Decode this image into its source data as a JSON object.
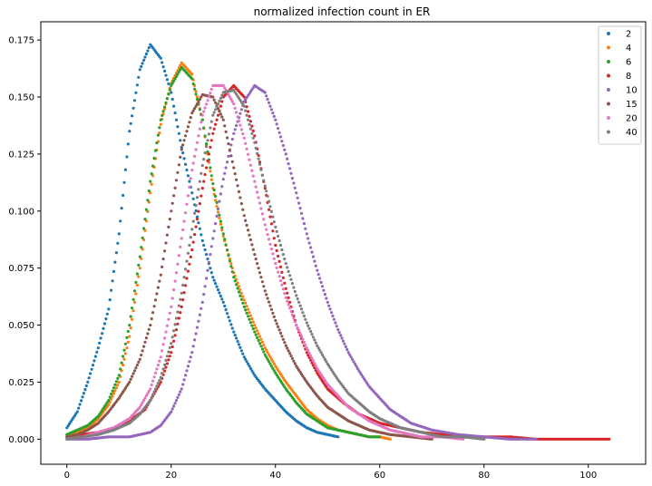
{
  "chart_data": {
    "type": "scatter",
    "title": "normalized infection count in ER",
    "xlabel": "",
    "ylabel": "",
    "xlim": [
      -5,
      111
    ],
    "ylim": [
      -0.011,
      0.183
    ],
    "xticks": [
      0,
      20,
      40,
      60,
      80,
      100
    ],
    "xtick_labels": [
      "0",
      "20",
      "40",
      "60",
      "80",
      "100"
    ],
    "yticks": [
      0.0,
      0.025,
      0.05,
      0.075,
      0.1,
      0.125,
      0.15,
      0.175
    ],
    "ytick_labels": [
      "0.000",
      "0.025",
      "0.050",
      "0.075",
      "0.100",
      "0.125",
      "0.150",
      "0.175"
    ],
    "grid": false,
    "legend_position": "top-right",
    "series": [
      {
        "name": "2",
        "color": "#1f77b4",
        "x": [
          0,
          2,
          4,
          6,
          8,
          10,
          12,
          14,
          16,
          18,
          20,
          22,
          24,
          26,
          28,
          30,
          32,
          34,
          36,
          38,
          40,
          42,
          44,
          46,
          48,
          50,
          52
        ],
        "y": [
          0.005,
          0.012,
          0.025,
          0.04,
          0.057,
          0.09,
          0.135,
          0.162,
          0.173,
          0.167,
          0.152,
          0.128,
          0.108,
          0.087,
          0.071,
          0.06,
          0.047,
          0.036,
          0.028,
          0.022,
          0.017,
          0.012,
          0.008,
          0.005,
          0.003,
          0.002,
          0.001
        ]
      },
      {
        "name": "4",
        "color": "#ff7f0e",
        "x": [
          0,
          2,
          4,
          6,
          8,
          10,
          12,
          14,
          16,
          18,
          20,
          22,
          24,
          26,
          28,
          30,
          32,
          34,
          36,
          38,
          40,
          42,
          44,
          46,
          48,
          50,
          52,
          54,
          56,
          58,
          60,
          62
        ],
        "y": [
          0.002,
          0.003,
          0.005,
          0.009,
          0.015,
          0.025,
          0.045,
          0.075,
          0.108,
          0.138,
          0.156,
          0.165,
          0.16,
          0.14,
          0.11,
          0.089,
          0.073,
          0.061,
          0.05,
          0.04,
          0.032,
          0.025,
          0.019,
          0.013,
          0.009,
          0.006,
          0.004,
          0.003,
          0.002,
          0.001,
          0.001,
          0.0
        ]
      },
      {
        "name": "6",
        "color": "#2ca02c",
        "x": [
          0,
          2,
          4,
          6,
          8,
          10,
          12,
          14,
          16,
          18,
          20,
          22,
          24,
          26,
          28,
          30,
          32,
          34,
          36,
          38,
          40,
          42,
          44,
          46,
          48,
          50,
          52,
          54,
          56,
          58,
          60
        ],
        "y": [
          0.002,
          0.004,
          0.006,
          0.01,
          0.017,
          0.028,
          0.05,
          0.08,
          0.113,
          0.14,
          0.155,
          0.163,
          0.158,
          0.14,
          0.112,
          0.09,
          0.071,
          0.058,
          0.047,
          0.037,
          0.029,
          0.022,
          0.016,
          0.011,
          0.008,
          0.005,
          0.004,
          0.003,
          0.002,
          0.001,
          0.001
        ]
      },
      {
        "name": "8",
        "color": "#d62728",
        "x": [
          0,
          3,
          6,
          9,
          12,
          15,
          18,
          20,
          22,
          24,
          26,
          28,
          30,
          32,
          34,
          36,
          38,
          40,
          42,
          44,
          46,
          48,
          50,
          53,
          56,
          60,
          64,
          68,
          72,
          76,
          80,
          85,
          90,
          95,
          100,
          104
        ],
        "y": [
          0.001,
          0.002,
          0.003,
          0.005,
          0.008,
          0.013,
          0.025,
          0.038,
          0.058,
          0.083,
          0.11,
          0.134,
          0.15,
          0.155,
          0.15,
          0.133,
          0.11,
          0.085,
          0.066,
          0.05,
          0.038,
          0.029,
          0.022,
          0.016,
          0.011,
          0.007,
          0.005,
          0.003,
          0.002,
          0.001,
          0.001,
          0.001,
          0.0,
          0.0,
          0.0,
          0.0
        ]
      },
      {
        "name": "10",
        "color": "#9467bd",
        "x": [
          0,
          4,
          8,
          12,
          16,
          18,
          20,
          22,
          24,
          26,
          28,
          30,
          32,
          34,
          36,
          38,
          40,
          42,
          44,
          46,
          48,
          50,
          52,
          54,
          56,
          58,
          60,
          62,
          64,
          66,
          70,
          75,
          80,
          85,
          90
        ],
        "y": [
          0.0,
          0.0,
          0.001,
          0.001,
          0.003,
          0.006,
          0.012,
          0.022,
          0.038,
          0.06,
          0.088,
          0.114,
          0.134,
          0.148,
          0.155,
          0.152,
          0.14,
          0.125,
          0.108,
          0.09,
          0.074,
          0.06,
          0.048,
          0.038,
          0.03,
          0.023,
          0.018,
          0.013,
          0.01,
          0.007,
          0.004,
          0.002,
          0.001,
          0.0,
          0.0
        ]
      },
      {
        "name": "15",
        "color": "#8c564b",
        "x": [
          0,
          2,
          4,
          6,
          8,
          10,
          12,
          14,
          16,
          18,
          20,
          22,
          24,
          26,
          28,
          30,
          32,
          34,
          36,
          38,
          40,
          42,
          44,
          46,
          48,
          50,
          52,
          54,
          56,
          58,
          60,
          62,
          66,
          70
        ],
        "y": [
          0.001,
          0.002,
          0.004,
          0.007,
          0.012,
          0.018,
          0.025,
          0.035,
          0.05,
          0.072,
          0.1,
          0.127,
          0.143,
          0.151,
          0.15,
          0.14,
          0.119,
          0.098,
          0.081,
          0.065,
          0.052,
          0.041,
          0.032,
          0.025,
          0.019,
          0.014,
          0.011,
          0.008,
          0.006,
          0.004,
          0.003,
          0.002,
          0.001,
          0.0
        ]
      },
      {
        "name": "20",
        "color": "#e377c2",
        "x": [
          0,
          3,
          6,
          9,
          12,
          14,
          16,
          18,
          20,
          22,
          24,
          26,
          28,
          30,
          32,
          34,
          36,
          38,
          40,
          42,
          44,
          46,
          48,
          50,
          52,
          54,
          56,
          58,
          60,
          62,
          64,
          66,
          68,
          72,
          76
        ],
        "y": [
          0.0,
          0.001,
          0.003,
          0.005,
          0.009,
          0.014,
          0.022,
          0.036,
          0.058,
          0.088,
          0.118,
          0.142,
          0.155,
          0.155,
          0.147,
          0.132,
          0.113,
          0.094,
          0.077,
          0.062,
          0.05,
          0.04,
          0.031,
          0.024,
          0.019,
          0.014,
          0.011,
          0.008,
          0.006,
          0.004,
          0.003,
          0.002,
          0.001,
          0.001,
          0.0
        ]
      },
      {
        "name": "40",
        "color": "#7f7f7f",
        "x": [
          0,
          3,
          6,
          9,
          12,
          14,
          16,
          18,
          20,
          22,
          24,
          26,
          28,
          30,
          32,
          34,
          36,
          38,
          40,
          42,
          44,
          46,
          48,
          50,
          52,
          54,
          56,
          58,
          60,
          62,
          64,
          66,
          68,
          72,
          76,
          80
        ],
        "y": [
          0.0,
          0.001,
          0.002,
          0.004,
          0.007,
          0.011,
          0.017,
          0.027,
          0.042,
          0.064,
          0.092,
          0.12,
          0.142,
          0.152,
          0.153,
          0.146,
          0.13,
          0.111,
          0.093,
          0.077,
          0.063,
          0.051,
          0.041,
          0.033,
          0.026,
          0.02,
          0.016,
          0.012,
          0.009,
          0.007,
          0.005,
          0.004,
          0.003,
          0.001,
          0.001,
          0.0
        ]
      }
    ]
  }
}
